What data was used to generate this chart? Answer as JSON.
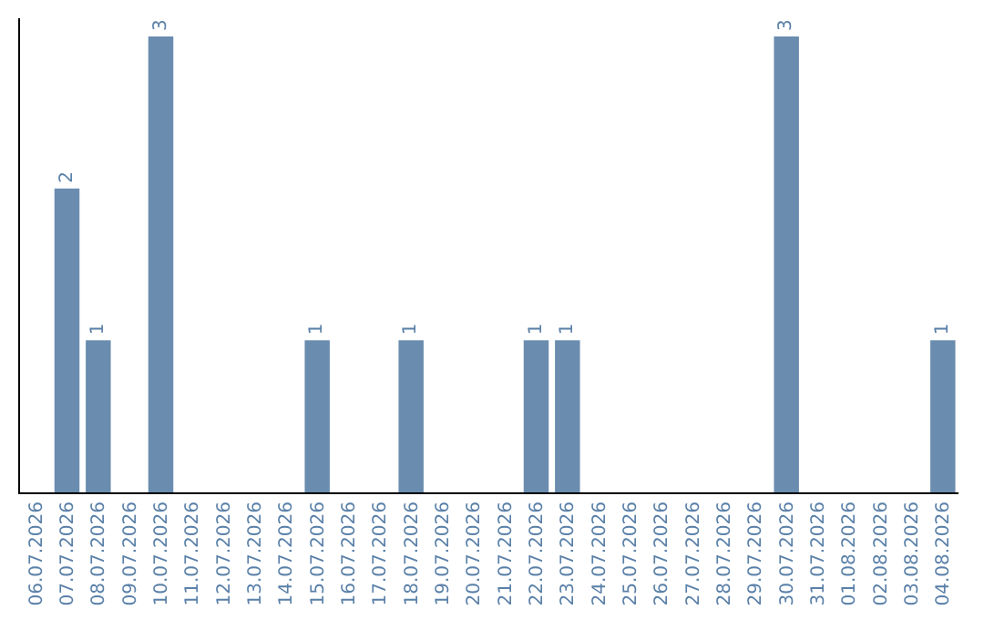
{
  "chart_data": {
    "type": "bar",
    "categories": [
      "06.07.2026",
      "07.07.2026",
      "08.07.2026",
      "09.07.2026",
      "10.07.2026",
      "11.07.2026",
      "12.07.2026",
      "13.07.2026",
      "14.07.2026",
      "15.07.2026",
      "16.07.2026",
      "17.07.2026",
      "18.07.2026",
      "19.07.2026",
      "20.07.2026",
      "21.07.2026",
      "22.07.2026",
      "23.07.2026",
      "24.07.2026",
      "25.07.2026",
      "26.07.2026",
      "27.07.2026",
      "28.07.2026",
      "29.07.2026",
      "30.07.2026",
      "31.07.2026",
      "01.08.2026",
      "02.08.2026",
      "03.08.2026",
      "04.08.2026"
    ],
    "values": [
      0,
      2,
      1,
      0,
      3,
      0,
      0,
      0,
      0,
      1,
      0,
      0,
      1,
      0,
      0,
      0,
      1,
      1,
      0,
      0,
      0,
      0,
      0,
      0,
      3,
      0,
      0,
      0,
      0,
      1
    ],
    "value_labels": [
      null,
      "2",
      "1",
      null,
      "3",
      null,
      null,
      null,
      null,
      "1",
      null,
      null,
      "1",
      null,
      null,
      null,
      "1",
      "1",
      null,
      null,
      null,
      null,
      null,
      null,
      "3",
      null,
      null,
      null,
      null,
      "1"
    ],
    "color": "#6a8caf",
    "ylim": [
      0,
      3.12
    ],
    "tick_labels": "x"
  }
}
